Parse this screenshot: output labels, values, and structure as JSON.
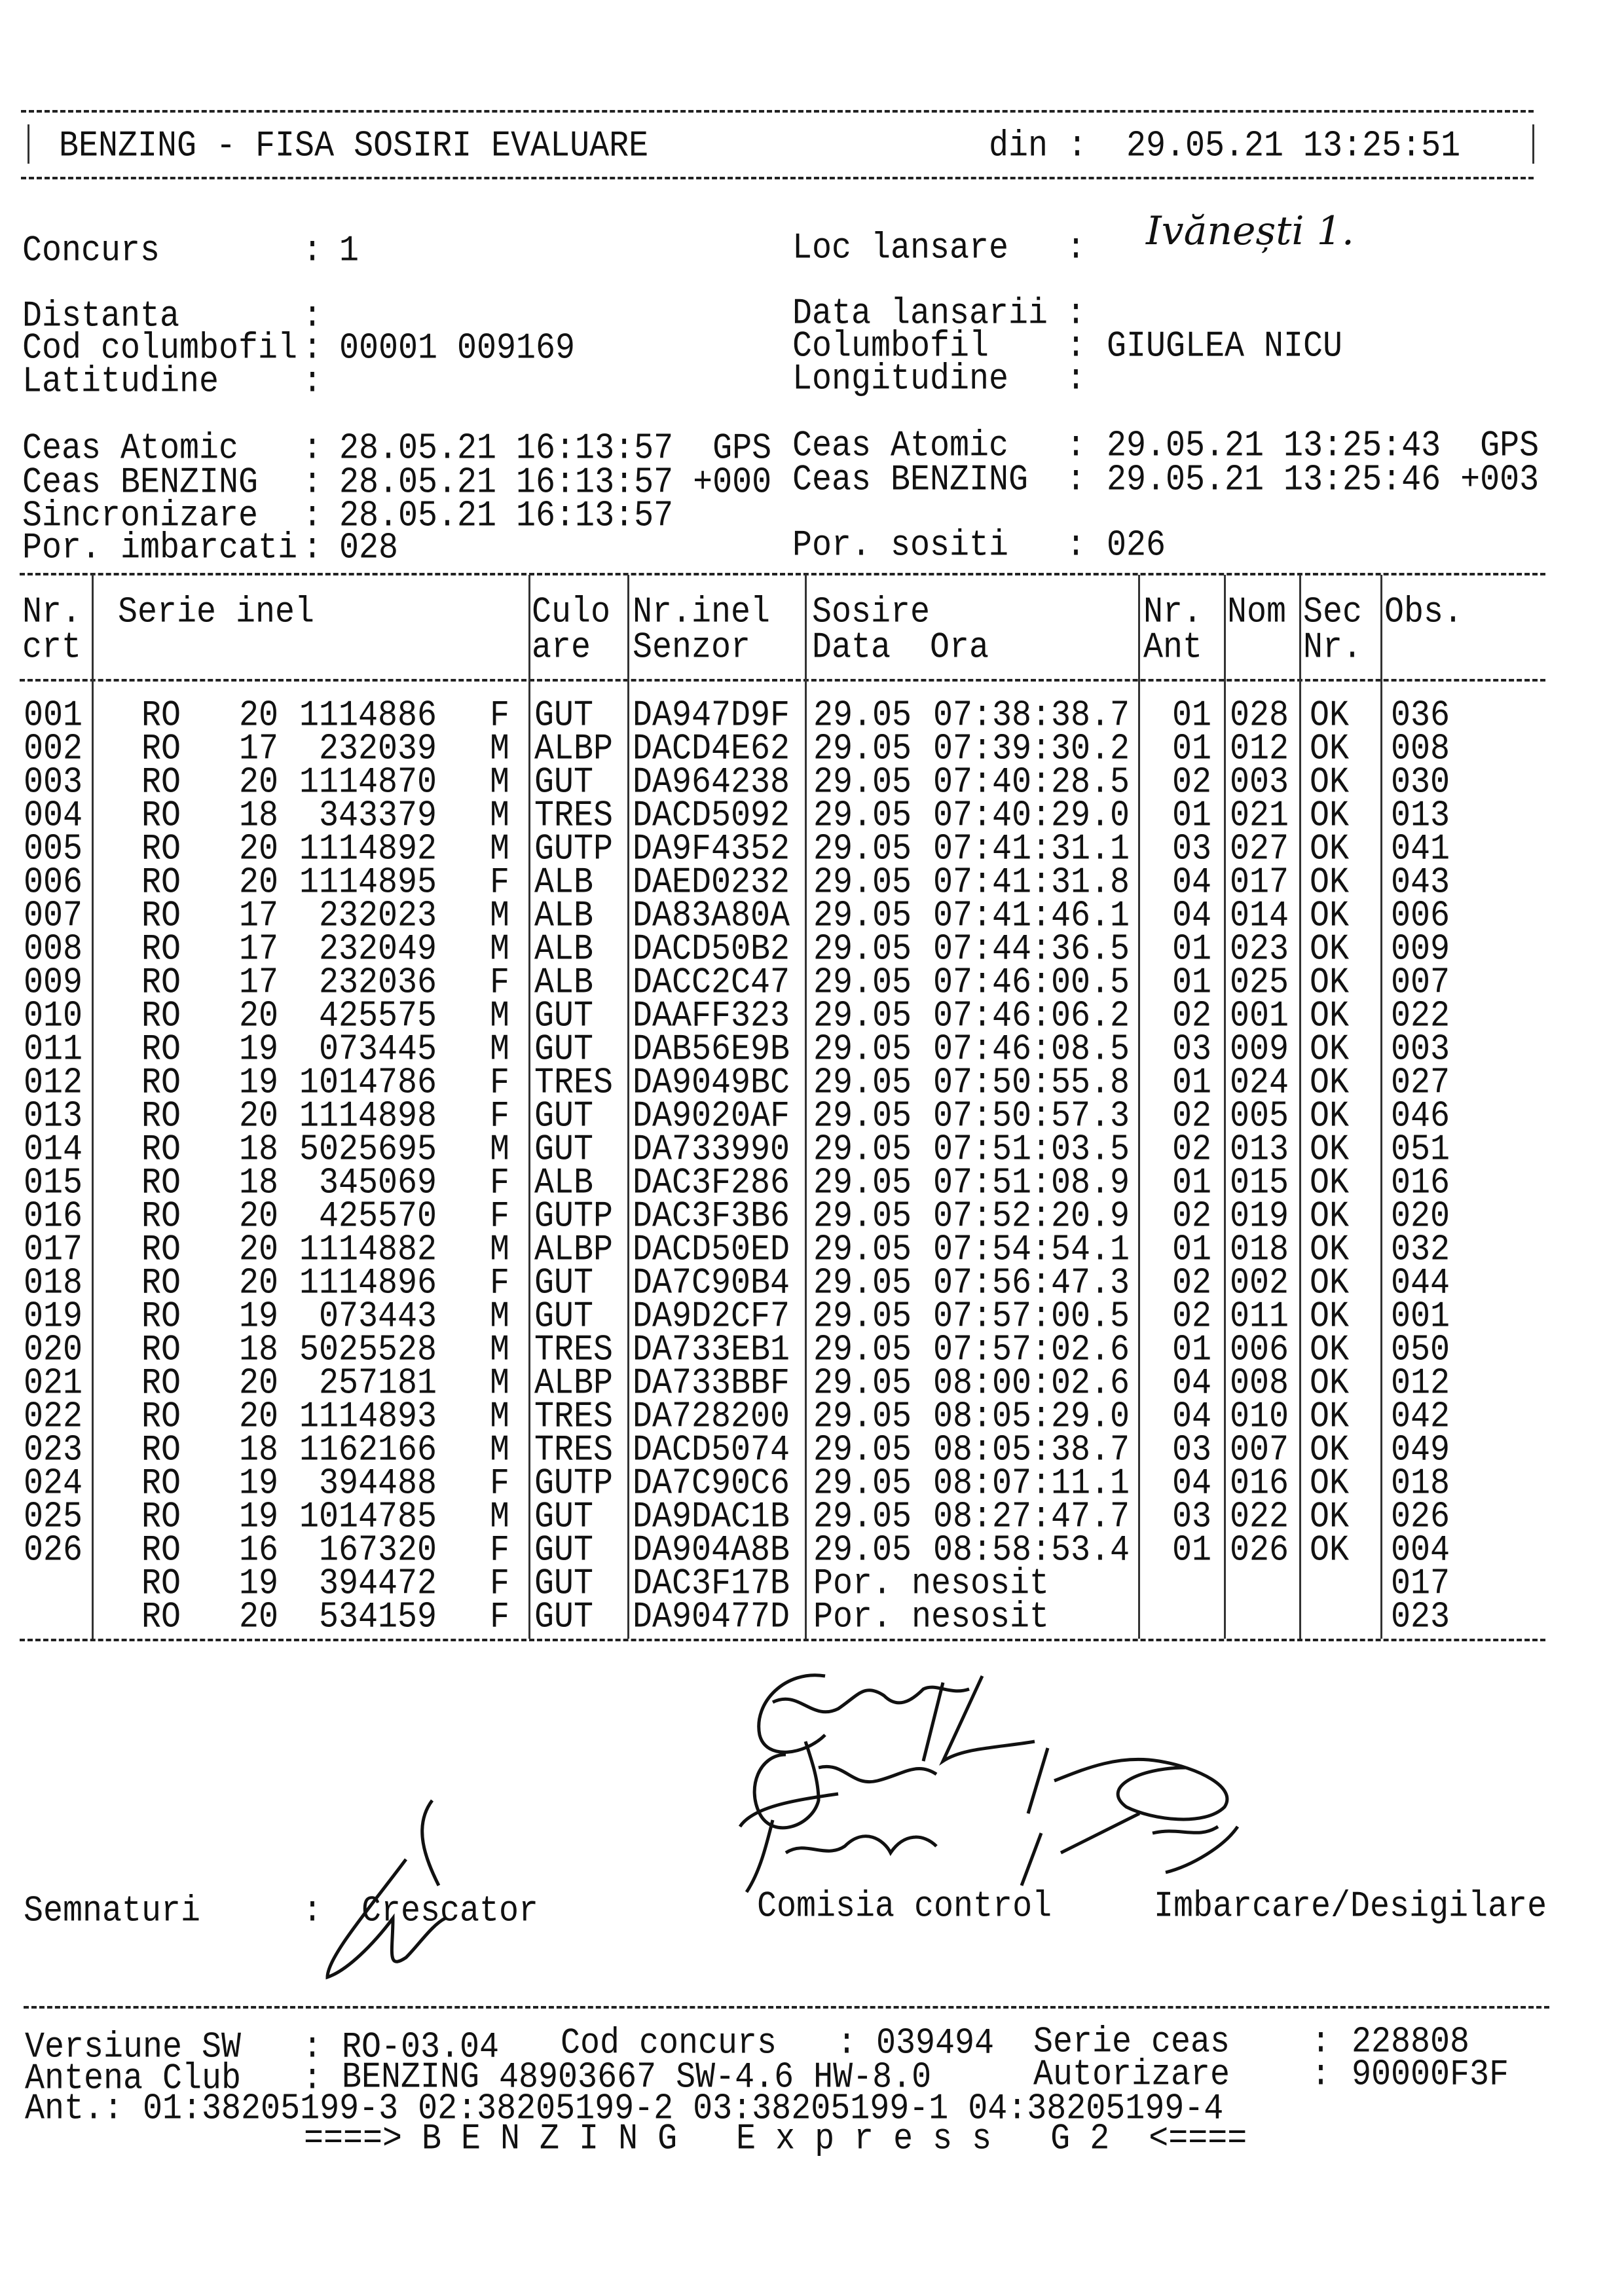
{
  "header": {
    "title": "BENZING - FISA SOSIRI EVALUARE",
    "din_label": "din :",
    "din_value": "29.05.21 13:25:51"
  },
  "info_left": [
    {
      "label": "Concurs",
      "value": "1"
    },
    {
      "label": "Distanta",
      "value": ""
    },
    {
      "label": "Cod columbofil",
      "value": "00001 009169"
    },
    {
      "label": "Latitudine",
      "value": ""
    },
    {
      "label": "Ceas Atomic",
      "value": "28.05.21 16:13:57  GPS"
    },
    {
      "label": "Ceas BENZING",
      "value": "28.05.21 16:13:57 +000"
    },
    {
      "label": "Sincronizare",
      "value": "28.05.21 16:13:57"
    },
    {
      "label": "Por. imbarcati",
      "value": "028"
    }
  ],
  "info_right": [
    {
      "label": "Loc lansare",
      "value": "Ivănești 1."
    },
    {
      "label": "Data lansarii",
      "value": ""
    },
    {
      "label": "Columbofil",
      "value": "GIUGLEA NICU"
    },
    {
      "label": "Longitudine",
      "value": ""
    },
    {
      "label": "Ceas Atomic",
      "value": "29.05.21 13:25:43  GPS"
    },
    {
      "label": "Ceas BENZING",
      "value": "29.05.21 13:25:46 +003"
    },
    {
      "label": "Por. sositi",
      "value": "026"
    }
  ],
  "table": {
    "headers": [
      [
        "Nr.",
        "crt"
      ],
      [
        "Serie inel",
        ""
      ],
      [
        "Culo",
        "are"
      ],
      [
        "Nr.inel",
        "Senzor"
      ],
      [
        "Sosire",
        "Data  Ora"
      ],
      [
        "Nr.",
        "Ant"
      ],
      [
        "Nom",
        ""
      ],
      [
        "Sec",
        "Nr."
      ],
      [
        "Obs.",
        ""
      ]
    ],
    "rows": [
      [
        "001",
        "RO",
        "20",
        "1114886",
        "F",
        "GUT",
        "DA947D9F",
        "29.05",
        "07:38:38.7",
        "01",
        "028",
        "OK",
        "036"
      ],
      [
        "002",
        "RO",
        "17",
        "232039",
        "M",
        "ALBP",
        "DACD4E62",
        "29.05",
        "07:39:30.2",
        "01",
        "012",
        "OK",
        "008"
      ],
      [
        "003",
        "RO",
        "20",
        "1114870",
        "M",
        "GUT",
        "DA964238",
        "29.05",
        "07:40:28.5",
        "02",
        "003",
        "OK",
        "030"
      ],
      [
        "004",
        "RO",
        "18",
        "343379",
        "M",
        "TRES",
        "DACD5092",
        "29.05",
        "07:40:29.0",
        "01",
        "021",
        "OK",
        "013"
      ],
      [
        "005",
        "RO",
        "20",
        "1114892",
        "M",
        "GUTP",
        "DA9F4352",
        "29.05",
        "07:41:31.1",
        "03",
        "027",
        "OK",
        "041"
      ],
      [
        "006",
        "RO",
        "20",
        "1114895",
        "F",
        "ALB",
        "DAED0232",
        "29.05",
        "07:41:31.8",
        "04",
        "017",
        "OK",
        "043"
      ],
      [
        "007",
        "RO",
        "17",
        "232023",
        "M",
        "ALB",
        "DA83A80A",
        "29.05",
        "07:41:46.1",
        "04",
        "014",
        "OK",
        "006"
      ],
      [
        "008",
        "RO",
        "17",
        "232049",
        "M",
        "ALB",
        "DACD50B2",
        "29.05",
        "07:44:36.5",
        "01",
        "023",
        "OK",
        "009"
      ],
      [
        "009",
        "RO",
        "17",
        "232036",
        "F",
        "ALB",
        "DACC2C47",
        "29.05",
        "07:46:00.5",
        "01",
        "025",
        "OK",
        "007"
      ],
      [
        "010",
        "RO",
        "20",
        "425575",
        "M",
        "GUT",
        "DAAFF323",
        "29.05",
        "07:46:06.2",
        "02",
        "001",
        "OK",
        "022"
      ],
      [
        "011",
        "RO",
        "19",
        "073445",
        "M",
        "GUT",
        "DAB56E9B",
        "29.05",
        "07:46:08.5",
        "03",
        "009",
        "OK",
        "003"
      ],
      [
        "012",
        "RO",
        "19",
        "1014786",
        "F",
        "TRES",
        "DA9049BC",
        "29.05",
        "07:50:55.8",
        "01",
        "024",
        "OK",
        "027"
      ],
      [
        "013",
        "RO",
        "20",
        "1114898",
        "F",
        "GUT",
        "DA9020AF",
        "29.05",
        "07:50:57.3",
        "02",
        "005",
        "OK",
        "046"
      ],
      [
        "014",
        "RO",
        "18",
        "5025695",
        "M",
        "GUT",
        "DA733990",
        "29.05",
        "07:51:03.5",
        "02",
        "013",
        "OK",
        "051"
      ],
      [
        "015",
        "RO",
        "18",
        "345069",
        "F",
        "ALB",
        "DAC3F286",
        "29.05",
        "07:51:08.9",
        "01",
        "015",
        "OK",
        "016"
      ],
      [
        "016",
        "RO",
        "20",
        "425570",
        "F",
        "GUTP",
        "DAC3F3B6",
        "29.05",
        "07:52:20.9",
        "02",
        "019",
        "OK",
        "020"
      ],
      [
        "017",
        "RO",
        "20",
        "1114882",
        "M",
        "ALBP",
        "DACD50ED",
        "29.05",
        "07:54:54.1",
        "01",
        "018",
        "OK",
        "032"
      ],
      [
        "018",
        "RO",
        "20",
        "1114896",
        "F",
        "GUT",
        "DA7C90B4",
        "29.05",
        "07:56:47.3",
        "02",
        "002",
        "OK",
        "044"
      ],
      [
        "019",
        "RO",
        "19",
        "073443",
        "M",
        "GUT",
        "DA9D2CF7",
        "29.05",
        "07:57:00.5",
        "02",
        "011",
        "OK",
        "001"
      ],
      [
        "020",
        "RO",
        "18",
        "5025528",
        "M",
        "TRES",
        "DA733EB1",
        "29.05",
        "07:57:02.6",
        "01",
        "006",
        "OK",
        "050"
      ],
      [
        "021",
        "RO",
        "20",
        "257181",
        "M",
        "ALBP",
        "DA733BBF",
        "29.05",
        "08:00:02.6",
        "04",
        "008",
        "OK",
        "012"
      ],
      [
        "022",
        "RO",
        "20",
        "1114893",
        "M",
        "TRES",
        "DA728200",
        "29.05",
        "08:05:29.0",
        "04",
        "010",
        "OK",
        "042"
      ],
      [
        "023",
        "RO",
        "18",
        "1162166",
        "M",
        "TRES",
        "DACD5074",
        "29.05",
        "08:05:38.7",
        "03",
        "007",
        "OK",
        "049"
      ],
      [
        "024",
        "RO",
        "19",
        "394488",
        "F",
        "GUTP",
        "DA7C90C6",
        "29.05",
        "08:07:11.1",
        "04",
        "016",
        "OK",
        "018"
      ],
      [
        "025",
        "RO",
        "19",
        "1014785",
        "M",
        "GUT",
        "DA9DAC1B",
        "29.05",
        "08:27:47.7",
        "03",
        "022",
        "OK",
        "026"
      ],
      [
        "026",
        "RO",
        "16",
        "167320",
        "F",
        "GUT",
        "DA904A8B",
        "29.05",
        "08:58:53.4",
        "01",
        "026",
        "OK",
        "004"
      ],
      [
        "",
        "RO",
        "19",
        "394472",
        "F",
        "GUT",
        "DAC3F17B",
        "Por. nesosit",
        "",
        "",
        "",
        "",
        "017"
      ],
      [
        "",
        "RO",
        "20",
        "534159",
        "F",
        "GUT",
        "DA90477D",
        "Por. nesosit",
        "",
        "",
        "",
        "",
        "023"
      ]
    ]
  },
  "signatures": {
    "label": "Semnaturi",
    "crescator": "Crescator",
    "comisia": "Comisia control",
    "imbarcare": "Imbarcare/Desigilare"
  },
  "footer": {
    "versiune_label": "Versiune SW",
    "versiune_value": "RO-03.04",
    "cod_concurs_label": "Cod concurs",
    "cod_concurs_value": "039494",
    "serie_ceas_label": "Serie ceas",
    "serie_ceas_value": "228808",
    "antena_label": "Antena Club",
    "antena_value": "BENZING 48903667 SW-4.6 HW-8.0",
    "autorizare_label": "Autorizare",
    "autorizare_value": "90000F3F",
    "ant_line": "Ant.: 01:38205199-3 02:38205199-2 03:38205199-1 04:38205199-4",
    "banner": "====> B E N Z I N G   E x p r e s s   G 2  <===="
  }
}
